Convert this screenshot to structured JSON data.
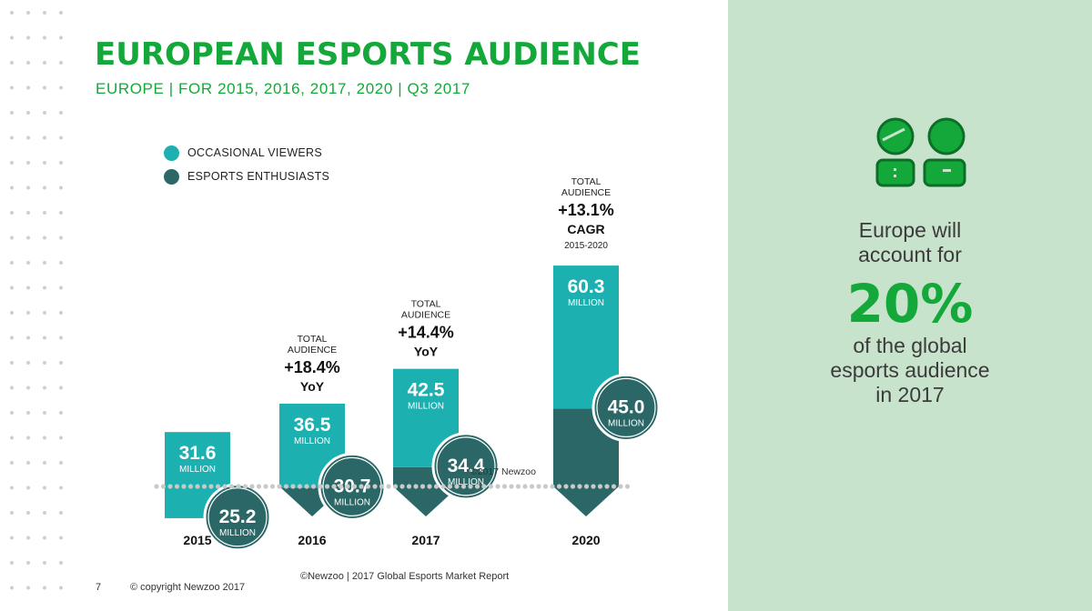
{
  "header": {
    "title": "EUROPEAN ESPORTS AUDIENCE",
    "subtitle": "EUROPE | FOR 2015, 2016, 2017, 2020 | Q3 2017"
  },
  "colors": {
    "brand_green": "#14a83b",
    "occasional": "#1db0b0",
    "enthusiasts": "#2a6766",
    "panel_bg": "#c7e3cb",
    "dot": "#cfcfcf"
  },
  "legend": [
    {
      "label": "OCCASIONAL VIEWERS",
      "color": "#1db0b0"
    },
    {
      "label": "ESPORTS ENTHUSIASTS",
      "color": "#2a6766"
    }
  ],
  "chart_data": {
    "type": "bar",
    "stacked": true,
    "categories": [
      "2015",
      "2016",
      "2017",
      "2020"
    ],
    "unit": "MILLION",
    "series": [
      {
        "name": "OCCASIONAL VIEWERS",
        "values": [
          31.6,
          36.5,
          42.5,
          60.3
        ]
      },
      {
        "name": "ESPORTS ENTHUSIASTS",
        "values": [
          25.2,
          30.7,
          34.4,
          45.0
        ]
      }
    ],
    "annotations": [
      {
        "category": "2016",
        "lines": [
          "TOTAL",
          "AUDIENCE"
        ],
        "value": "+18.4%",
        "tag": "YoY",
        "sub": ""
      },
      {
        "category": "2017",
        "lines": [
          "TOTAL",
          "AUDIENCE"
        ],
        "value": "+14.4%",
        "tag": "YoY",
        "sub": ""
      },
      {
        "category": "2020",
        "lines": [
          "TOTAL",
          "AUDIENCE"
        ],
        "value": "+13.1%",
        "tag": "CAGR",
        "sub": "2015-2020"
      }
    ],
    "legend_position": "top-left",
    "grid": false
  },
  "chart_copyright": "©2017 Newzoo",
  "side_panel": {
    "line1": "Europe will",
    "line2": "account for",
    "big": "20%",
    "line3": "of the global",
    "line4": "esports audience",
    "line5": "in 2017",
    "icon": "people-icon"
  },
  "footer": {
    "source": "©Newzoo | 2017 Global Esports Market Report",
    "page": "7",
    "copyright": "© copyright Newzoo 2017"
  }
}
